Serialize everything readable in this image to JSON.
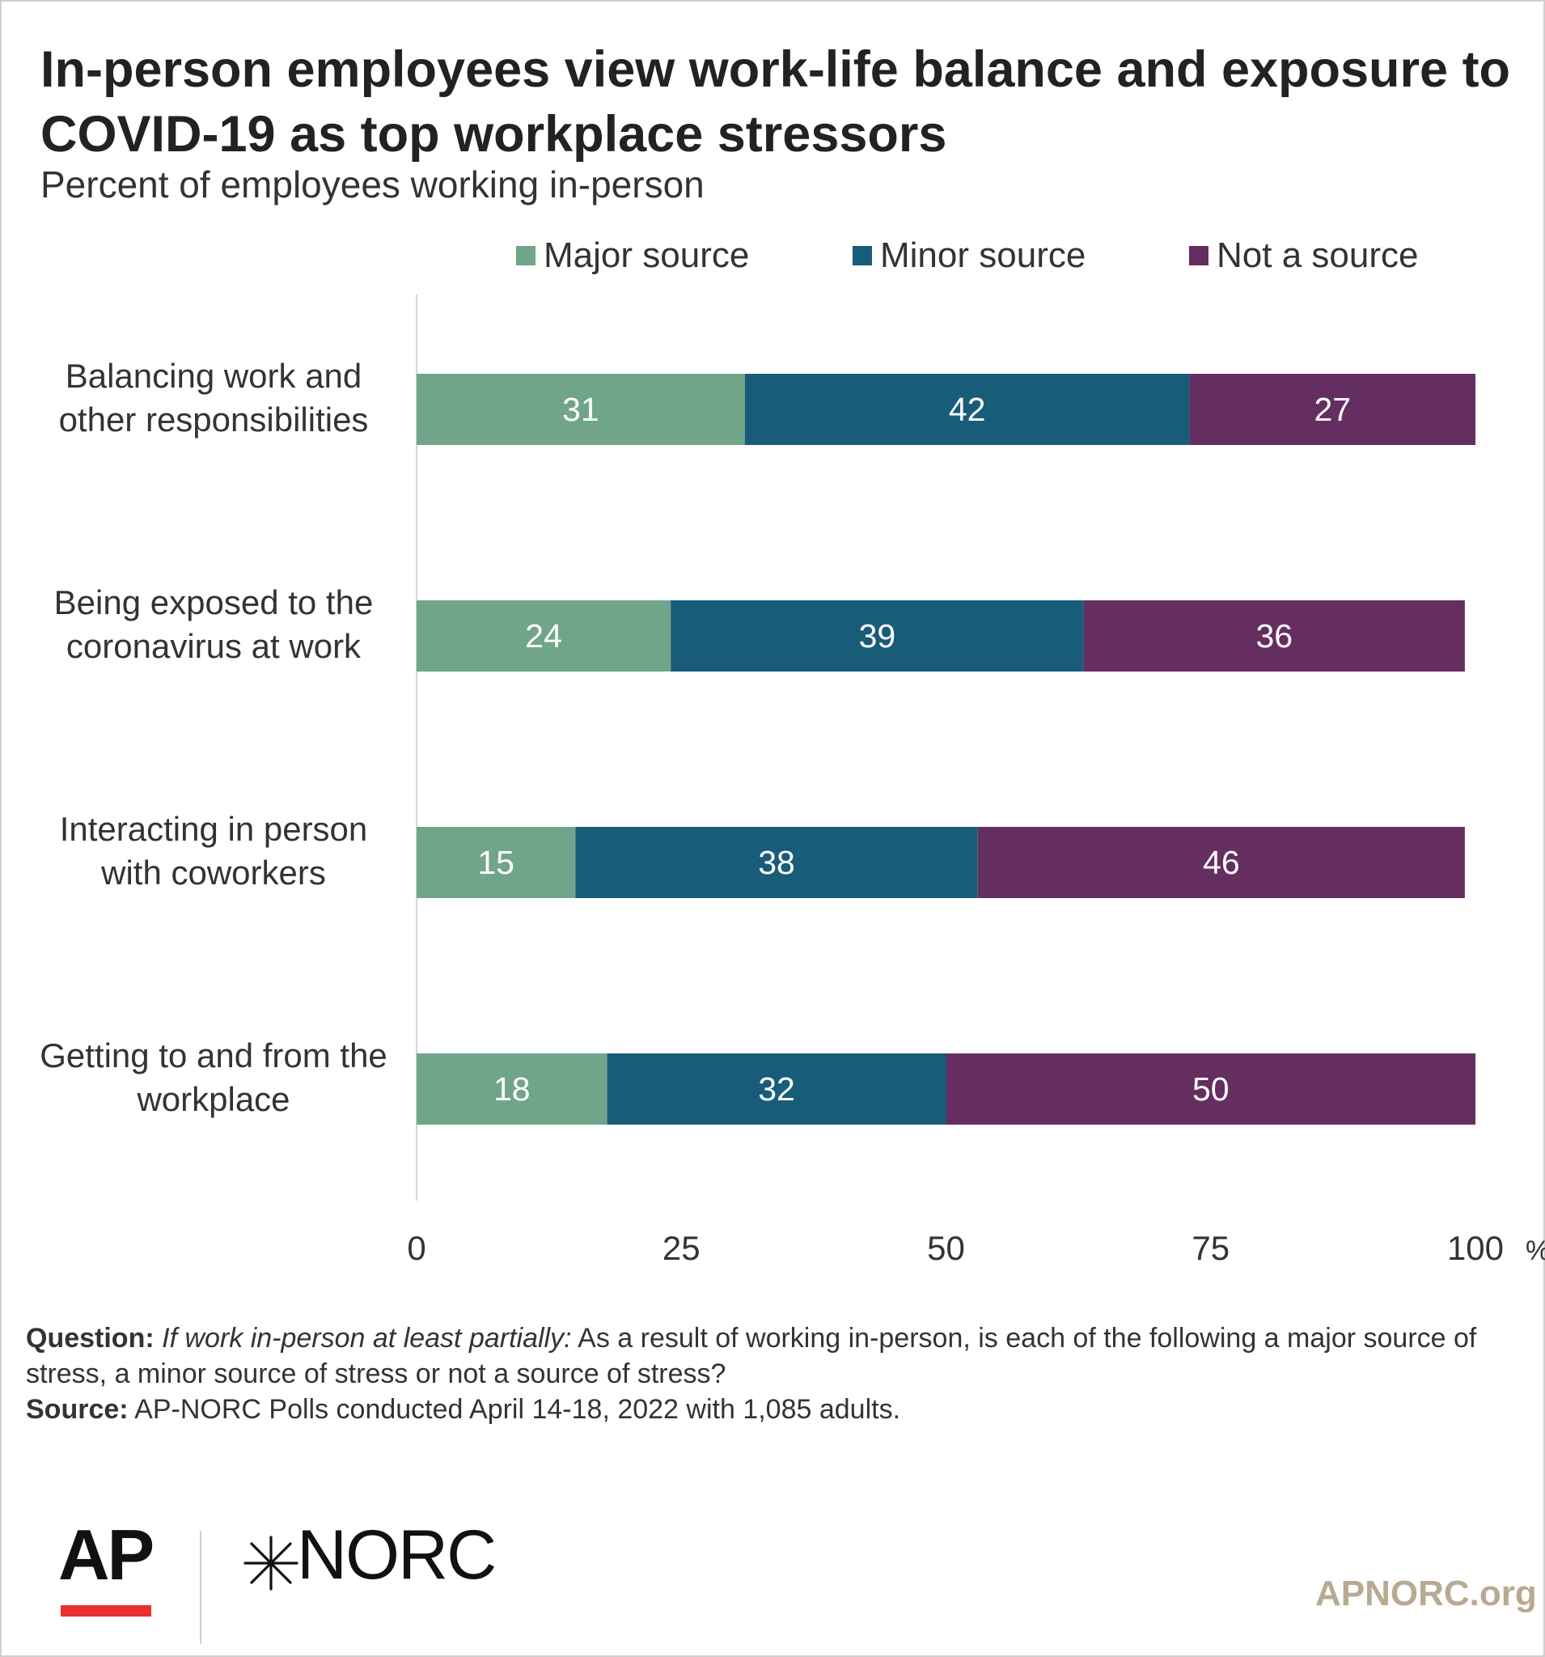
{
  "header": {
    "title": "In-person employees view work-life balance and exposure to COVID-19 as top workplace stressors",
    "subtitle": "Percent of employees working in-person"
  },
  "legend": [
    {
      "label": "Major source",
      "color": "#71a58a"
    },
    {
      "label": "Minor source",
      "color": "#185c7a"
    },
    {
      "label": "Not a source",
      "color": "#652e60"
    }
  ],
  "chart_data": {
    "type": "bar",
    "orientation": "horizontal",
    "stacked": true,
    "categories": [
      [
        "Balancing work and",
        "other responsibilities"
      ],
      [
        "Being exposed to the",
        "coronavirus at work"
      ],
      [
        "Interacting in person",
        "with coworkers"
      ],
      [
        "Getting to and from the",
        "workplace"
      ]
    ],
    "series": [
      {
        "name": "Major source",
        "color": "#71a58a",
        "values": [
          31,
          24,
          15,
          18
        ]
      },
      {
        "name": "Minor source",
        "color": "#185c7a",
        "values": [
          42,
          39,
          38,
          32
        ]
      },
      {
        "name": "Not a source",
        "color": "#652e60",
        "values": [
          27,
          36,
          46,
          50
        ]
      }
    ],
    "xlim": [
      0,
      100
    ],
    "xticks": [
      0,
      25,
      50,
      75,
      100
    ],
    "xunit": "%",
    "legend_position": "top",
    "grid": false
  },
  "footnote": {
    "question_label": "Question:",
    "question_condition": "If work in-person at least partially:",
    "question_text": "As a result of working in-person, is each of the following a major source of stress, a minor source of stress or not a source of stress?",
    "source_label": "Source:",
    "source_text": "AP-NORC Polls conducted April 14-18, 2022 with 1,085 adults."
  },
  "branding": {
    "ap": "AP",
    "norc": "NORC",
    "site": "APNORC.org",
    "ap_red": "#e8312f",
    "site_color": "#b8aa92"
  }
}
